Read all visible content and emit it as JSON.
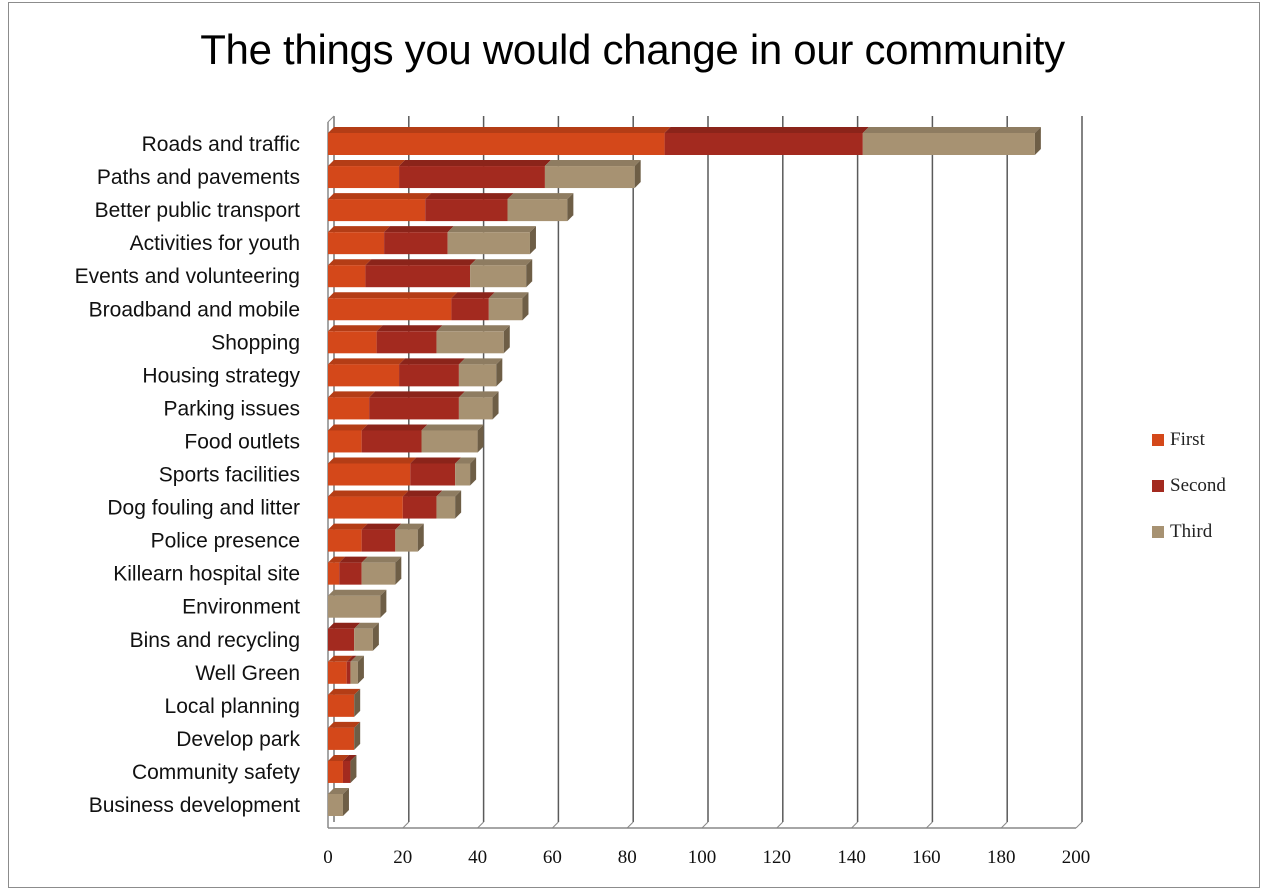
{
  "chart_data": {
    "type": "bar",
    "orientation": "horizontal",
    "stacked": true,
    "title": "The things you would change in our community",
    "categories": [
      "Roads and traffic",
      "Paths and pavements",
      "Better public transport",
      "Activities for youth",
      "Events and volunteering",
      "Broadband and mobile",
      "Shopping",
      "Housing strategy",
      "Parking issues",
      "Food outlets",
      "Sports facilities",
      "Dog fouling and litter",
      "Police presence",
      "Killearn hospital site",
      "Environment",
      "Bins and recycling",
      "Well Green",
      "Local planning",
      "Develop park",
      "Community safety",
      "Business development"
    ],
    "series": [
      {
        "name": "First",
        "color": "#d4481a",
        "values": [
          90,
          19,
          26,
          15,
          10,
          33,
          13,
          19,
          11,
          9,
          22,
          20,
          9,
          3,
          0,
          0,
          5,
          7,
          7,
          4,
          0
        ]
      },
      {
        "name": "Second",
        "color": "#a32a1f",
        "values": [
          53,
          39,
          22,
          17,
          28,
          10,
          16,
          16,
          24,
          16,
          12,
          9,
          9,
          6,
          0,
          7,
          1,
          0,
          0,
          2,
          0
        ]
      },
      {
        "name": "Third",
        "color": "#a79272",
        "values": [
          46,
          24,
          16,
          22,
          15,
          9,
          18,
          10,
          9,
          15,
          4,
          5,
          6,
          9,
          14,
          5,
          2,
          0,
          0,
          0,
          4
        ]
      }
    ],
    "xlim": [
      0,
      200
    ],
    "xticks": [
      "0",
      "20",
      "40",
      "60",
      "80",
      "100",
      "120",
      "140",
      "160",
      "180",
      "200"
    ],
    "grid": true,
    "legend_position": "right"
  }
}
